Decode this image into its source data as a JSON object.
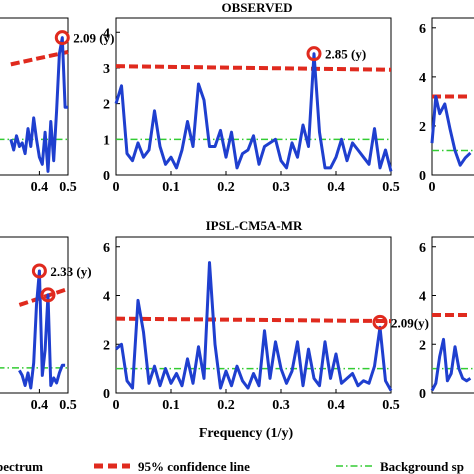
{
  "chart_data": {
    "type": "line",
    "xlabel": "Frequency (1/y)",
    "legend": [
      {
        "label": "Spectrum",
        "color": "#1f3fcf",
        "style": "solid"
      },
      {
        "label": "95% confidence line",
        "color": "#e02a1e",
        "style": "dashed"
      },
      {
        "label": "Background spectrum",
        "color": "#33cc33",
        "style": "dashdot"
      }
    ],
    "legend_texts": [
      "pectrum",
      "95% confidence line",
      "Background sp"
    ],
    "panels": [
      {
        "id": "top-left",
        "title": "",
        "x_ticks": [
          "0.4",
          "0.5"
        ],
        "y_ticks": [],
        "spectrum_x": [
          0.3,
          0.31,
          0.32,
          0.33,
          0.34,
          0.35,
          0.36,
          0.37,
          0.38,
          0.39,
          0.4,
          0.41,
          0.42,
          0.43,
          0.44,
          0.45,
          0.46,
          0.47,
          0.48,
          0.49,
          0.5
        ],
        "spectrum_y": [
          1.0,
          0.7,
          1.1,
          0.8,
          0.9,
          0.6,
          1.3,
          0.8,
          1.6,
          1.0,
          0.5,
          0.3,
          1.2,
          0.1,
          1.5,
          0.4,
          1.8,
          3.4,
          3.85,
          1.9,
          1.9
        ],
        "confidence": [
          [
            0.3,
            3.1
          ],
          [
            0.5,
            3.45
          ]
        ],
        "background": 1.0,
        "annotations": [
          {
            "text": "2.09 (y)",
            "x": 0.48,
            "y": 3.85
          }
        ]
      },
      {
        "id": "observed",
        "title": "OBSERVED",
        "x_ticks": [
          "0",
          "0.1",
          "0.2",
          "0.3",
          "0.4",
          "0.5"
        ],
        "y_ticks": [
          "0",
          "1",
          "2",
          "3",
          "4"
        ],
        "spectrum_x": [
          0,
          0.01,
          0.02,
          0.03,
          0.04,
          0.05,
          0.06,
          0.07,
          0.08,
          0.09,
          0.1,
          0.11,
          0.12,
          0.13,
          0.14,
          0.15,
          0.16,
          0.17,
          0.18,
          0.19,
          0.2,
          0.21,
          0.22,
          0.23,
          0.24,
          0.25,
          0.26,
          0.27,
          0.28,
          0.29,
          0.3,
          0.31,
          0.32,
          0.33,
          0.34,
          0.35,
          0.36,
          0.37,
          0.38,
          0.39,
          0.4,
          0.41,
          0.42,
          0.43,
          0.44,
          0.45,
          0.46,
          0.47,
          0.48,
          0.49,
          0.5
        ],
        "spectrum_y": [
          2.0,
          2.5,
          0.6,
          0.4,
          0.9,
          0.5,
          0.7,
          1.8,
          0.8,
          0.3,
          0.5,
          0.2,
          0.7,
          1.5,
          0.8,
          2.55,
          2.1,
          0.8,
          0.8,
          1.25,
          0.5,
          1.2,
          0.2,
          0.6,
          0.7,
          1.1,
          0.3,
          0.8,
          0.9,
          1.0,
          0.4,
          0.2,
          0.9,
          0.5,
          1.4,
          0.8,
          3.4,
          1.2,
          0.2,
          0.2,
          0.5,
          1.0,
          0.4,
          0.9,
          0.7,
          0.5,
          0.3,
          1.3,
          0.2,
          0.7,
          0.1
        ],
        "confidence": [
          [
            0.0,
            3.05
          ],
          [
            0.5,
            2.95
          ]
        ],
        "background": 1.0,
        "annotations": [
          {
            "text": "2.85 (y)",
            "x": 0.36,
            "y": 3.4
          }
        ]
      },
      {
        "id": "top-right",
        "title": "",
        "x_ticks": [
          "0"
        ],
        "y_ticks": [
          "0",
          "2",
          "4",
          "6"
        ],
        "spectrum_x": [
          0.0,
          0.003,
          0.006,
          0.01,
          0.014,
          0.018,
          0.022,
          0.026,
          0.03
        ],
        "spectrum_y": [
          1.3,
          3.2,
          2.5,
          2.9,
          1.9,
          1.0,
          0.4,
          0.7,
          0.9
        ],
        "confidence": [
          [
            0.0,
            3.2
          ],
          [
            0.03,
            3.2
          ]
        ],
        "background": 1.0,
        "annotations": []
      },
      {
        "id": "bottom-left",
        "title": "",
        "x_ticks": [
          "0.4",
          "0.5"
        ],
        "y_ticks": [],
        "spectrum_x": [
          0.33,
          0.34,
          0.35,
          0.36,
          0.37,
          0.38,
          0.39,
          0.4,
          0.41,
          0.42,
          0.43,
          0.44,
          0.45,
          0.46,
          0.47,
          0.48,
          0.49
        ],
        "spectrum_y": [
          0.9,
          0.7,
          0.3,
          0.8,
          0.2,
          1.2,
          3.5,
          4.85,
          0.7,
          1.7,
          3.9,
          0.3,
          0.6,
          0.4,
          0.8,
          1.1,
          1.1
        ],
        "confidence": [
          [
            0.33,
            3.5
          ],
          [
            0.49,
            4.1
          ]
        ],
        "background": 1.0,
        "annotations": [
          {
            "text": "2.33 (y)",
            "x": 0.4,
            "y": 4.85
          }
        ]
      },
      {
        "id": "ipsl",
        "title": "IPSL-CM5A-MR",
        "x_ticks": [
          "0",
          "0.1",
          "0.2",
          "0.3",
          "0.4",
          "0.5"
        ],
        "y_ticks": [
          "0",
          "2",
          "4",
          "6"
        ],
        "spectrum_x": [
          0,
          0.01,
          0.02,
          0.03,
          0.04,
          0.05,
          0.06,
          0.07,
          0.08,
          0.09,
          0.1,
          0.11,
          0.12,
          0.13,
          0.14,
          0.15,
          0.16,
          0.17,
          0.18,
          0.19,
          0.2,
          0.21,
          0.22,
          0.23,
          0.24,
          0.25,
          0.26,
          0.27,
          0.28,
          0.29,
          0.3,
          0.31,
          0.32,
          0.33,
          0.34,
          0.35,
          0.36,
          0.37,
          0.38,
          0.39,
          0.4,
          0.41,
          0.42,
          0.43,
          0.44,
          0.45,
          0.46,
          0.47,
          0.48,
          0.49,
          0.5
        ],
        "spectrum_y": [
          1.8,
          2.0,
          0.5,
          0.2,
          3.8,
          2.5,
          0.4,
          1.1,
          0.3,
          1.0,
          0.4,
          0.8,
          0.3,
          1.4,
          0.4,
          1.9,
          0.6,
          5.35,
          2.0,
          0.2,
          0.9,
          0.3,
          1.1,
          0.5,
          0.2,
          0.8,
          0.3,
          2.55,
          0.6,
          2.1,
          1.0,
          0.4,
          0.9,
          2.1,
          0.3,
          1.8,
          0.6,
          0.3,
          2.1,
          0.6,
          1.6,
          0.4,
          0.6,
          0.8,
          0.3,
          0.5,
          0.4,
          1.1,
          2.7,
          0.5,
          0.1
        ],
        "confidence": [
          [
            0.0,
            3.05
          ],
          [
            0.5,
            2.95
          ]
        ],
        "background": 1.0,
        "annotations": [
          {
            "text": "2.09(y)",
            "x": 0.48,
            "y": 2.9
          }
        ]
      },
      {
        "id": "bottom-right",
        "title": "",
        "x_ticks": [],
        "y_ticks": [
          "0",
          "2",
          "4",
          "6"
        ],
        "spectrum_x": [
          0.0,
          0.003,
          0.006,
          0.009,
          0.012,
          0.015,
          0.018,
          0.021,
          0.024,
          0.027,
          0.03
        ],
        "spectrum_y": [
          0.1,
          0.4,
          1.5,
          2.2,
          0.5,
          0.8,
          1.9,
          1.0,
          0.6,
          0.5,
          0.6
        ],
        "confidence": [
          [
            0.0,
            3.2
          ],
          [
            0.03,
            3.2
          ]
        ],
        "background": 1.0,
        "annotations": []
      }
    ]
  }
}
